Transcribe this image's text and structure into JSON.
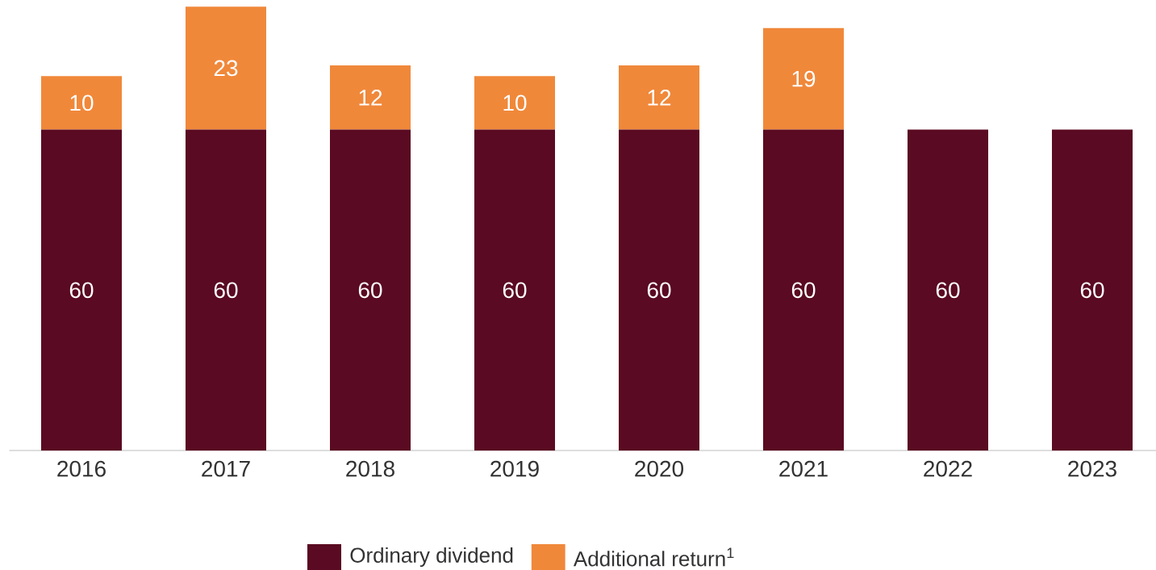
{
  "chart_data": {
    "type": "bar",
    "stacked": true,
    "data_labels": true,
    "legend": "bottom",
    "categories": [
      "2016",
      "2017",
      "2018",
      "2019",
      "2020",
      "2021",
      "2022",
      "2023"
    ],
    "series": [
      {
        "name": "Ordinary dividend",
        "color": "#5a0a22",
        "values": [
          60,
          60,
          60,
          60,
          60,
          60,
          60,
          60
        ]
      },
      {
        "name": "Additional return$^{1}$",
        "color": "#f0883a",
        "values": [
          10,
          23,
          12,
          10,
          12,
          19,
          null,
          null
        ]
      }
    ]
  }
}
